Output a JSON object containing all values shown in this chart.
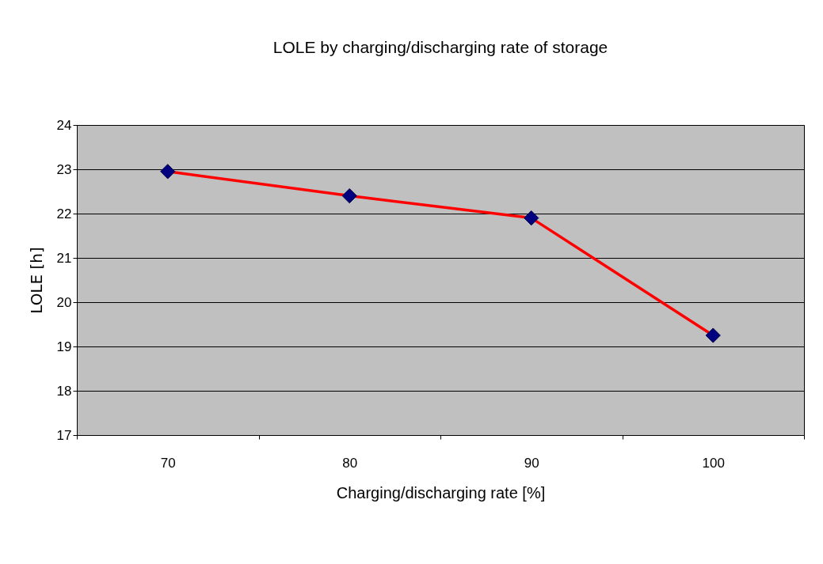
{
  "chart_data": {
    "type": "line",
    "title": "LOLE by charging/discharging rate of storage",
    "xlabel": "Charging/discharging rate [%]",
    "ylabel": "LOLE [h]",
    "categories": [
      "70",
      "80",
      "90",
      "100"
    ],
    "series": [
      {
        "color": "#ff0000",
        "colors": [
          "#000080",
          "#000080",
          "#000080",
          "#000080"
        ],
        "values": [
          22.95,
          22.4,
          21.9,
          19.25
        ]
      }
    ],
    "ylim": [
      17,
      24
    ],
    "yticks": [
      17,
      18,
      19,
      20,
      21,
      22,
      23,
      24
    ],
    "grid": "y",
    "marker": "diamond",
    "line_style": "solid"
  }
}
